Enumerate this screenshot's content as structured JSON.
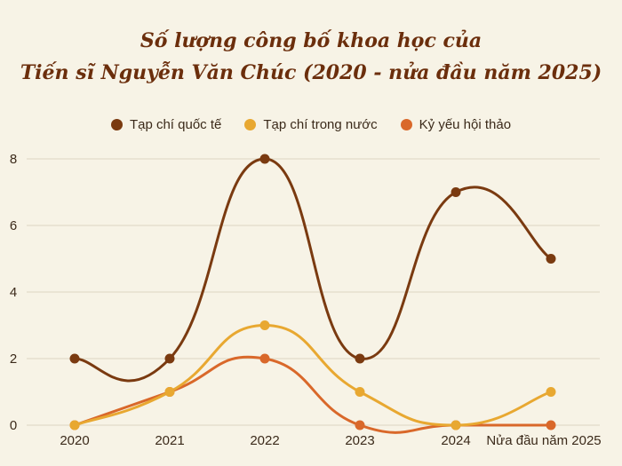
{
  "chart_data": {
    "type": "line",
    "title_line1": "Số lượng công bố khoa học của",
    "title_line2": "Tiến sĩ Nguyễn Văn Chúc (2020 - nửa đầu năm 2025)",
    "categories": [
      "2020",
      "2021",
      "2022",
      "2023",
      "2024",
      "Nửa đầu năm 2025"
    ],
    "ylim": [
      0,
      8
    ],
    "yticks": [
      0,
      2,
      4,
      6,
      8
    ],
    "grid": true,
    "legend_position": "top",
    "series": [
      {
        "name": "Tạp chí quốc tế",
        "color": "#7a3a10",
        "values": [
          2,
          2,
          8,
          2,
          7,
          5
        ]
      },
      {
        "name": "Tạp chí trong nước",
        "color": "#e8a831",
        "values": [
          0,
          1,
          3,
          1,
          0,
          1
        ]
      },
      {
        "name": "Kỷ yếu hội thảo",
        "color": "#d9682a",
        "values": [
          0,
          1,
          2,
          0,
          0,
          0
        ]
      }
    ]
  }
}
